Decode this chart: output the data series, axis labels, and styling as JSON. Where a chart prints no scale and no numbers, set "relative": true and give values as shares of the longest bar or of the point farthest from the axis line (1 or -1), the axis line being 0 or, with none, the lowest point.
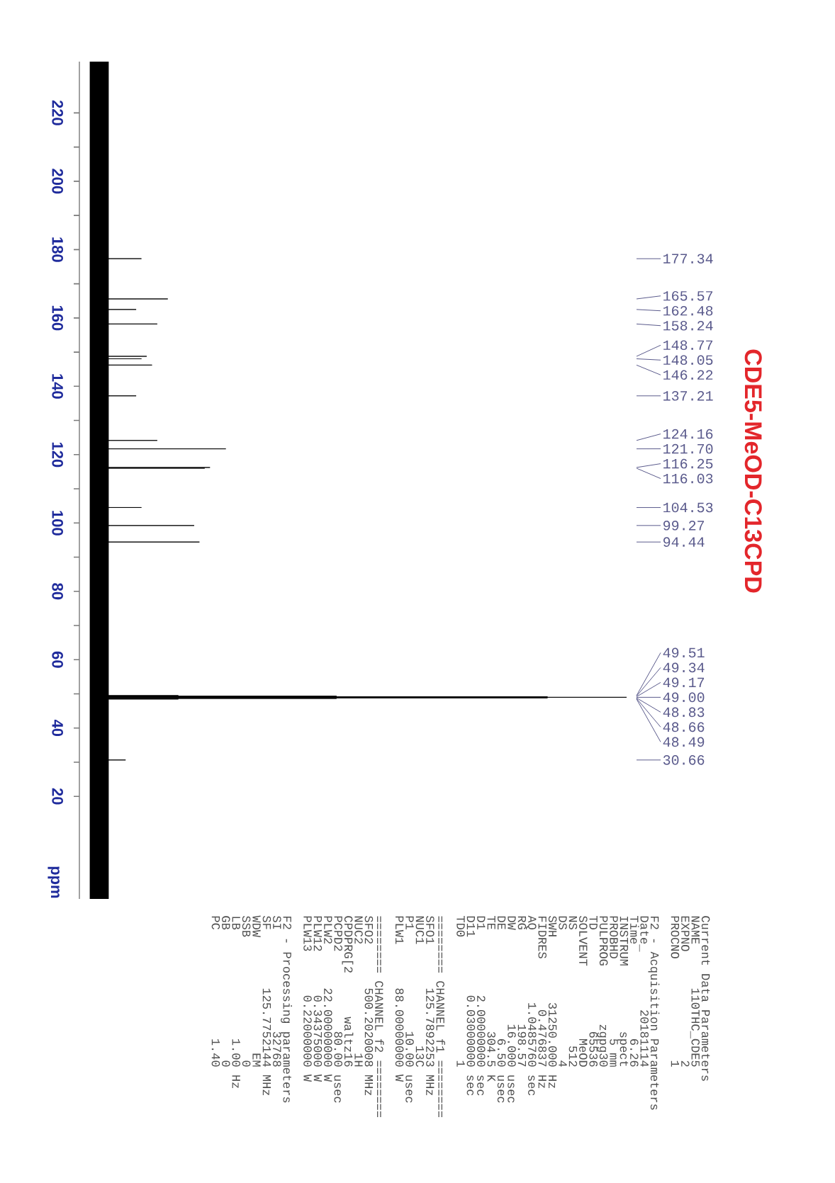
{
  "chart_data": {
    "type": "line",
    "orientation": "horizontal",
    "title": "CDE5-MeOD-C13CPD",
    "ylabel": "ppm",
    "relative": true,
    "ylim": [
      -10,
      235
    ],
    "yticks": [
      220,
      200,
      180,
      160,
      140,
      120,
      100,
      80,
      60,
      40,
      20
    ],
    "x": [
      235,
      177.34,
      177.34,
      177.34,
      165.57,
      165.57,
      165.57,
      162.48,
      162.48,
      162.48,
      158.24,
      158.24,
      158.24,
      148.77,
      148.77,
      148.77,
      148.05,
      148.05,
      148.05,
      146.22,
      146.22,
      146.22,
      137.21,
      137.21,
      137.21,
      124.16,
      124.16,
      124.16,
      121.7,
      121.7,
      121.7,
      116.25,
      116.25,
      116.25,
      116.03,
      116.03,
      116.03,
      104.53,
      104.53,
      104.53,
      99.27,
      99.27,
      99.27,
      94.44,
      94.44,
      94.44,
      49.51,
      49.51,
      49.51,
      49.34,
      49.34,
      49.34,
      49.17,
      49.17,
      49.17,
      49,
      49,
      49,
      48.83,
      48.83,
      48.83,
      48.66,
      48.66,
      48.66,
      48.49,
      48.49,
      48.49,
      30.66,
      30.66,
      30.66,
      -10
    ],
    "series": [
      {
        "color": "#000000",
        "values": [
          0,
          0,
          0.08,
          0,
          0,
          0.13,
          0,
          0,
          0.07,
          0,
          0,
          0.11,
          0,
          0,
          0.09,
          0,
          0,
          0.08,
          0,
          0,
          0.1,
          0,
          0,
          0.07,
          0,
          0,
          0.11,
          0,
          0,
          0.24,
          0,
          0,
          0.21,
          0,
          0,
          0.2,
          0,
          0,
          0.08,
          0,
          0,
          0.18,
          0,
          0,
          0.19,
          0,
          0,
          0.15,
          0,
          0,
          0.45,
          0,
          0,
          0.85,
          0,
          0,
          1,
          0,
          0,
          0.85,
          0,
          0,
          0.45,
          0,
          0,
          0.15,
          0,
          0,
          0.05,
          0,
          0
        ],
        "lower": [
          -0.018,
          -0.018,
          -0.018,
          -0.018,
          -0.018,
          -0.018,
          -0.018,
          -0.018,
          -0.018,
          -0.018,
          -0.018,
          -0.018,
          -0.018,
          -0.018,
          -0.018,
          -0.018,
          -0.018,
          -0.018,
          -0.018,
          -0.018,
          -0.018,
          -0.018,
          -0.018,
          -0.018,
          -0.018,
          -0.018,
          -0.018,
          -0.018,
          -0.018,
          -0.018,
          -0.018,
          -0.018,
          -0.018,
          -0.018,
          -0.018,
          -0.018,
          -0.018,
          -0.018,
          -0.018,
          -0.018,
          -0.018,
          -0.018,
          -0.018,
          -0.018,
          -0.018,
          -0.018,
          -0.018,
          -0.018,
          -0.018,
          -0.018,
          -0.018,
          -0.018,
          -0.018,
          -0.018,
          -0.018,
          -0.018,
          -0.018,
          -0.018,
          -0.018,
          -0.018,
          -0.018,
          -0.018,
          -0.018,
          -0.018,
          -0.018,
          -0.018,
          -0.018,
          -0.018,
          -0.018,
          -0.018,
          -0.018
        ],
        "upper": [
          0.018,
          0.018,
          0.018,
          0.018,
          0.018,
          0.018,
          0.018,
          0.018,
          0.018,
          0.018,
          0.018,
          0.018,
          0.018,
          0.018,
          0.018,
          0.018,
          0.018,
          0.018,
          0.018,
          0.018,
          0.018,
          0.018,
          0.018,
          0.018,
          0.018,
          0.018,
          0.018,
          0.018,
          0.018,
          0.018,
          0.018,
          0.018,
          0.018,
          0.018,
          0.018,
          0.018,
          0.018,
          0.018,
          0.018,
          0.018,
          0.018,
          0.018,
          0.018,
          0.018,
          0.018,
          0.018,
          0.018,
          0.018,
          0.018,
          0.018,
          0.018,
          0.018,
          0.018,
          0.018,
          0.018,
          0.018,
          0.018,
          0.018,
          0.018,
          0.018,
          0.018,
          0.018,
          0.018,
          0.018,
          0.018,
          0.018,
          0.018,
          0.018,
          0.018,
          0.018,
          0.018
        ]
      }
    ],
    "annotations": [
      "177.34",
      "165.57",
      "162.48",
      "158.24",
      "148.77",
      "148.05",
      "146.22",
      "137.21",
      "124.16",
      "121.70",
      "116.25",
      "116.03",
      "104.53",
      "99.27",
      "94.44",
      "49.51",
      "49.34",
      "49.17",
      "49.00",
      "48.83",
      "48.66",
      "48.49",
      "30.66",
      "Current Data Parameters",
      "NAME      110THC_CDE5",
      "EXPNO               2",
      "PROCNO              1",
      "F2 - Acquisition Parameters",
      "Date_        20181114",
      "Time             6.26",
      "INSTRUM         spect",
      "PROBHD           5 mm",
      "PULPROG        zgpg30",
      "TD              65536",
      "SOLVENT          MeOD",
      "NS                512",
      "DS                  4",
      "SWH         31250.000 Hz",
      "FIDRES       0.476837 Hz",
      "AQ          1.0485760 sec",
      "RG             198.57",
      "DW             16.000 usec",
      "DE               6.50 usec",
      "TE              304.5 K",
      "D1         2.00000000 sec",
      "D11        0.03000000 sec",
      "TD0                 1",
      "======== CHANNEL f1 ========",
      "SFO1      125.7892253 MHz",
      "NUC1              13C",
      "P1              10.00 usec",
      "PLW1      88.00000000 W",
      "======== CHANNEL f2 ========",
      "SFO2      500.2020008 MHz",
      "NUC2               1H",
      "CPDPRG[2      waltz16",
      "PCPD2           80.00 usec",
      "PLW2      22.00000000 W",
      "PLW12      0.34375000 W",
      "PLW13      0.22000000 W",
      "F2 - Processing parameters",
      "SI              32768",
      "SF        125.7752144 MHz",
      "WDW                EM",
      "SSB                 0",
      "LB               1.00 Hz",
      "GB                  0",
      "PC               1.40"
    ]
  }
}
